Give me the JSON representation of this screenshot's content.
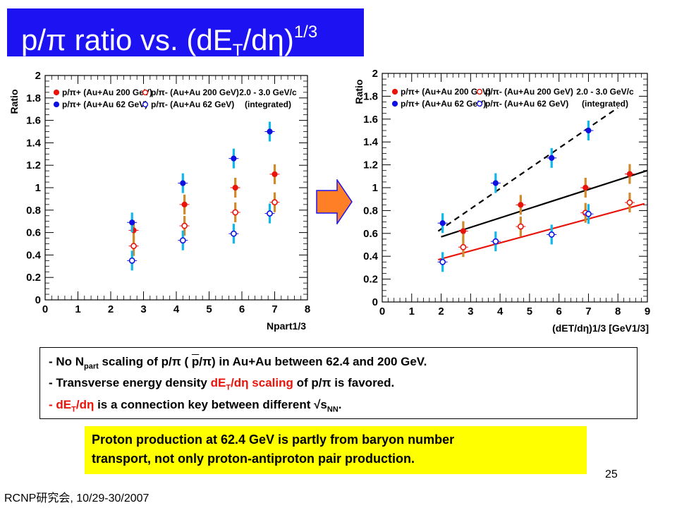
{
  "slide": {
    "title_pre": "p/",
    "title_pi": "π",
    "title_mid": " ratio vs. (dE",
    "title_sub": "T",
    "title_d": "/d",
    "title_eta": "η",
    "title_close": ")",
    "title_sup": "1/3",
    "page_number": "25",
    "footer": "RCNP研究会, 10/29-30/2007"
  },
  "notes": {
    "line1": {
      "a": "- No N",
      "a_sub": "part",
      "b": " scaling of p/π ( ",
      "pbar": "p",
      "c": "/π) in Au+Au between 62.4 and 200 GeV."
    },
    "line2": {
      "a": "- Transverse energy density ",
      "red": "dE",
      "red_sub": "T",
      "red2": "/dη scaling",
      "b": " of p/π is favored."
    },
    "line3": {
      "red": "- dE",
      "red_sub": "T",
      "red2": "/dη",
      "b": " is a connection key between different √s",
      "b_sub": "NN",
      "c": "."
    }
  },
  "callout": {
    "line1": "Proton production at 62.4 GeV is partly from baryon number",
    "line2": "transport, not only proton-antiproton pair production."
  },
  "colors": {
    "title_bg": "#1c12f2",
    "red": "#e8140c",
    "blue": "#1010e0",
    "orange_err": "#d08a2a",
    "cyan_err": "#10b8ea",
    "arrow_fill": "#ff7f27",
    "callout_bg": "#ffff00"
  },
  "chart_data": [
    {
      "type": "scatter",
      "xlabel": "Npart1/3",
      "ylabel": "Ratio",
      "xlim": [
        0,
        8
      ],
      "ylim": [
        0,
        2
      ],
      "xticks": [
        "0",
        "1",
        "2",
        "3",
        "4",
        "5",
        "6",
        "7",
        "8"
      ],
      "yticks": [
        "0",
        "0.2",
        "0.4",
        "0.6",
        "0.8",
        "1",
        "1.2",
        "1.4",
        "1.6",
        "1.8",
        "2"
      ],
      "grid": false,
      "legend_position": "top-left",
      "legend": [
        {
          "label": "p/π+ (Au+Au 200 GeV)",
          "marker": "filled-red"
        },
        {
          "label": "p/π+ (Au+Au 62 GeV)",
          "marker": "filled-blue"
        },
        {
          "label": "p/π- (Au+Au 200 GeV)",
          "marker": "open-red"
        },
        {
          "label": "p/π- (Au+Au 62 GeV)",
          "marker": "open-blue"
        }
      ],
      "annotation": [
        "2.0 - 3.0 GeV/c",
        "(integrated)"
      ],
      "series": [
        {
          "name": "p/π+ (Au+Au 200 GeV)",
          "marker": "filled-red",
          "x": [
            2.7,
            4.25,
            5.8,
            7.0
          ],
          "y": [
            0.62,
            0.85,
            1.0,
            1.12
          ]
        },
        {
          "name": "p/π+ (Au+Au 62 GeV)",
          "marker": "filled-blue",
          "x": [
            2.65,
            4.2,
            5.75,
            6.85
          ],
          "y": [
            0.69,
            1.04,
            1.26,
            1.5
          ]
        },
        {
          "name": "p/π- (Au+Au 200 GeV)",
          "marker": "open-red",
          "x": [
            2.7,
            4.25,
            5.8,
            7.0
          ],
          "y": [
            0.48,
            0.66,
            0.78,
            0.87
          ]
        },
        {
          "name": "p/π- (Au+Au 62 GeV)",
          "marker": "open-blue",
          "x": [
            2.65,
            4.2,
            5.75,
            6.85
          ],
          "y": [
            0.35,
            0.53,
            0.59,
            0.77
          ]
        }
      ]
    },
    {
      "type": "scatter",
      "xlabel": "(dET/dη)1/3 [GeV1/3]",
      "ylabel": "Ratio",
      "xlim": [
        0,
        9
      ],
      "ylim": [
        0,
        2
      ],
      "xticks": [
        "0",
        "1",
        "2",
        "3",
        "4",
        "5",
        "6",
        "7",
        "8",
        "9"
      ],
      "yticks": [
        "0",
        "0.2",
        "0.4",
        "0.6",
        "0.8",
        "1",
        "1.2",
        "1.4",
        "1.6",
        "1.8",
        "2"
      ],
      "grid": false,
      "legend_position": "top-left",
      "legend": [
        {
          "label": "p/π+ (Au+Au 200 GeV)",
          "marker": "filled-red"
        },
        {
          "label": "p/π+ (Au+Au 62 GeV)",
          "marker": "filled-blue"
        },
        {
          "label": "p/π- (Au+Au 200 GeV)",
          "marker": "open-red"
        },
        {
          "label": "p/π- (Au+Au 62 GeV)",
          "marker": "open-blue"
        }
      ],
      "annotation": [
        "2.0 - 3.0 GeV/c",
        "(integrated)"
      ],
      "series": [
        {
          "name": "p/π+ (Au+Au 200 GeV)",
          "marker": "filled-red",
          "x": [
            2.75,
            4.7,
            6.9,
            8.4
          ],
          "y": [
            0.62,
            0.85,
            1.0,
            1.12
          ]
        },
        {
          "name": "p/π+ (Au+Au 62 GeV)",
          "marker": "filled-blue",
          "x": [
            2.05,
            3.85,
            5.75,
            7.0
          ],
          "y": [
            0.69,
            1.04,
            1.26,
            1.5
          ]
        },
        {
          "name": "p/π- (Au+Au 200 GeV)",
          "marker": "open-red",
          "x": [
            2.75,
            4.7,
            6.9,
            8.4
          ],
          "y": [
            0.48,
            0.66,
            0.78,
            0.87
          ]
        },
        {
          "name": "p/π- (Au+Au 62 GeV)",
          "marker": "open-blue",
          "x": [
            2.05,
            3.85,
            5.75,
            7.0
          ],
          "y": [
            0.35,
            0.53,
            0.59,
            0.77
          ]
        }
      ],
      "fit_lines": [
        {
          "style": "dashed",
          "color": "#000000",
          "x": [
            1.9,
            8.0
          ],
          "y": [
            0.62,
            1.7
          ]
        },
        {
          "style": "solid",
          "color": "#000000",
          "x": [
            2.0,
            9.0
          ],
          "y": [
            0.57,
            1.15
          ]
        },
        {
          "style": "solid",
          "color": "#e8140c",
          "x": [
            1.9,
            8.9
          ],
          "y": [
            0.37,
            0.86
          ]
        }
      ]
    }
  ]
}
